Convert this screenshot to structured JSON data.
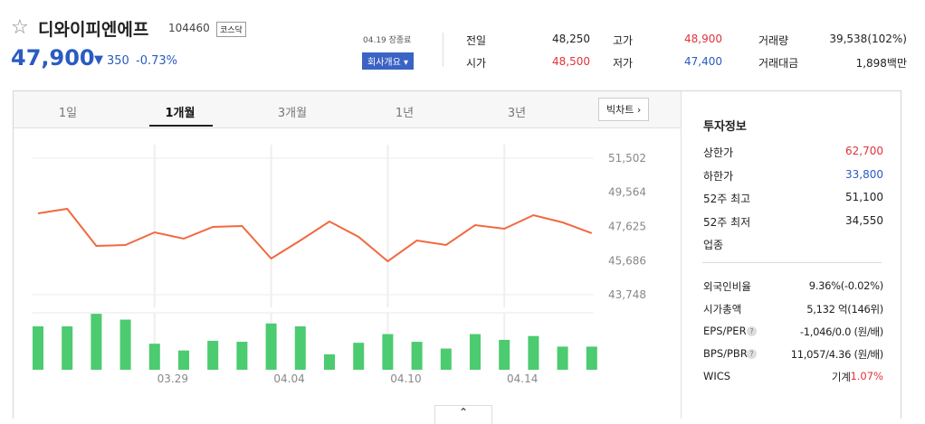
{
  "header": {
    "name": "디와이피엔에프",
    "code": "104460",
    "market": "코스닥",
    "price": "47,900",
    "change": "350",
    "change_pct": "-0.73%",
    "status": "04.19 장종료",
    "company_button": "회사개요"
  },
  "quote": [
    [
      {
        "label": "전일",
        "value": "48,250"
      },
      {
        "label": "고가",
        "value": "48,900"
      },
      {
        "label": "거래량",
        "value": "39,538(102%)"
      }
    ],
    [
      {
        "label": "시가",
        "value": "48,500"
      },
      {
        "label": "저가",
        "value": "47,400"
      },
      {
        "label": "거래대금",
        "value": "1,898백만"
      }
    ]
  ],
  "tabs": [
    "1일",
    "1개월",
    "3개월",
    "1년",
    "3년"
  ],
  "big_chart": "빅차트",
  "chart_data": {
    "type": "line",
    "color": "#f2683f",
    "bar_color": "#4ccb70",
    "categories": [
      null,
      null,
      null,
      null,
      "03.29",
      null,
      null,
      null,
      "04.04",
      null,
      null,
      null,
      "04.10",
      null,
      null,
      null,
      "04.14",
      null,
      null,
      null
    ],
    "values": [
      48370,
      48626,
      46521,
      46572,
      47291,
      46932,
      47599,
      47651,
      45802,
      46829,
      47907,
      47034,
      45648,
      46829,
      46572,
      47702,
      47497,
      48267,
      47856,
      47240
    ],
    "volume": [
      45,
      45,
      58,
      52,
      27,
      20,
      30,
      29,
      48,
      45,
      16,
      28,
      37,
      29,
      22,
      37,
      31,
      35,
      24,
      24
    ],
    "ylim": [
      43748,
      51502
    ],
    "y2lim": [
      0,
      60
    ],
    "yticks": [
      {
        "value": 51502,
        "label": "51,502"
      },
      {
        "value": 49564,
        "label": "49,564"
      },
      {
        "value": 47625,
        "label": "47,625"
      },
      {
        "value": 45686,
        "label": "45,686"
      },
      {
        "value": 43748,
        "label": "43,748"
      }
    ],
    "grid": true
  },
  "invest": {
    "title": "투자정보",
    "group1": [
      {
        "label": "상한가",
        "value": "62,700",
        "tone": "up"
      },
      {
        "label": "하한가",
        "value": "33,800",
        "tone": "down"
      },
      {
        "label": "52주 최고",
        "value": "51,100"
      },
      {
        "label": "52주 최저",
        "value": "34,550"
      },
      {
        "label": "업종"
      }
    ],
    "group2": [
      {
        "label": "외국인비율",
        "value": "9.36%(-0.02%)"
      },
      {
        "label": "시가총액",
        "value": "5,132 억(146위)"
      },
      {
        "label": "EPS/PER",
        "value": "-1,046/0.0 (원/배)"
      },
      {
        "label": "BPS/PBR",
        "value": "11,057/4.36 (원/배)"
      },
      {
        "label": "WICS",
        "value": "기계",
        "extra": "1.07%"
      }
    ]
  }
}
